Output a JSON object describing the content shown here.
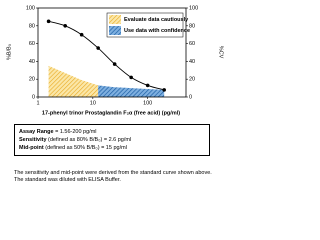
{
  "chart_data": {
    "type": "line",
    "x_label": "17-phenyl trinor Prostaglandin F₂α (free acid) (pg/ml)",
    "y_label": "%B/B₀",
    "y2_label": "%CV",
    "log_x": true,
    "xlim": [
      1,
      500
    ],
    "xticks": [
      1,
      10,
      100
    ],
    "ylim": [
      0,
      100
    ],
    "yticks": [
      0,
      20,
      40,
      60,
      80,
      100
    ],
    "y2lim": [
      0,
      100
    ],
    "y2ticks": [
      0,
      20,
      40,
      60,
      80,
      100
    ],
    "legend": "upper right",
    "series": [
      {
        "color": "#000000",
        "x": [
          1.56,
          3.13,
          6.25,
          12.5,
          25,
          50,
          100,
          200
        ],
        "values": [
          85,
          80,
          70,
          55,
          37,
          22,
          13,
          8
        ]
      },
      {
        "name": "Evaluate data cautiously",
        "kind": "area",
        "axis": "y2",
        "color": "#f0c040",
        "x": [
          1.56,
          3.13,
          6.25,
          12.5
        ],
        "values": [
          35,
          27,
          19,
          13
        ]
      },
      {
        "name": "Use data with confidence",
        "kind": "area",
        "axis": "y2",
        "color": "#2a6fb5",
        "x": [
          12.5,
          25,
          50,
          100,
          200
        ],
        "values": [
          13,
          11,
          10,
          9,
          8
        ]
      }
    ]
  },
  "notes": {
    "assay_range": {
      "label": "Assay Range",
      "text": "= 1.56-200 pg/ml"
    },
    "sensitivity": {
      "label": "Sensitivity",
      "text": "(defined as 80% B/B₀) = 2.6 pg/ml"
    },
    "midpoint": {
      "label": "Mid-point",
      "text": "(defined as 50% B/B₀) = 15 pg/ml"
    },
    "paragraph": "The sensitivity and mid-point were derived from the standard curve shown above. The standard was diluted with ELISA Buffer."
  }
}
